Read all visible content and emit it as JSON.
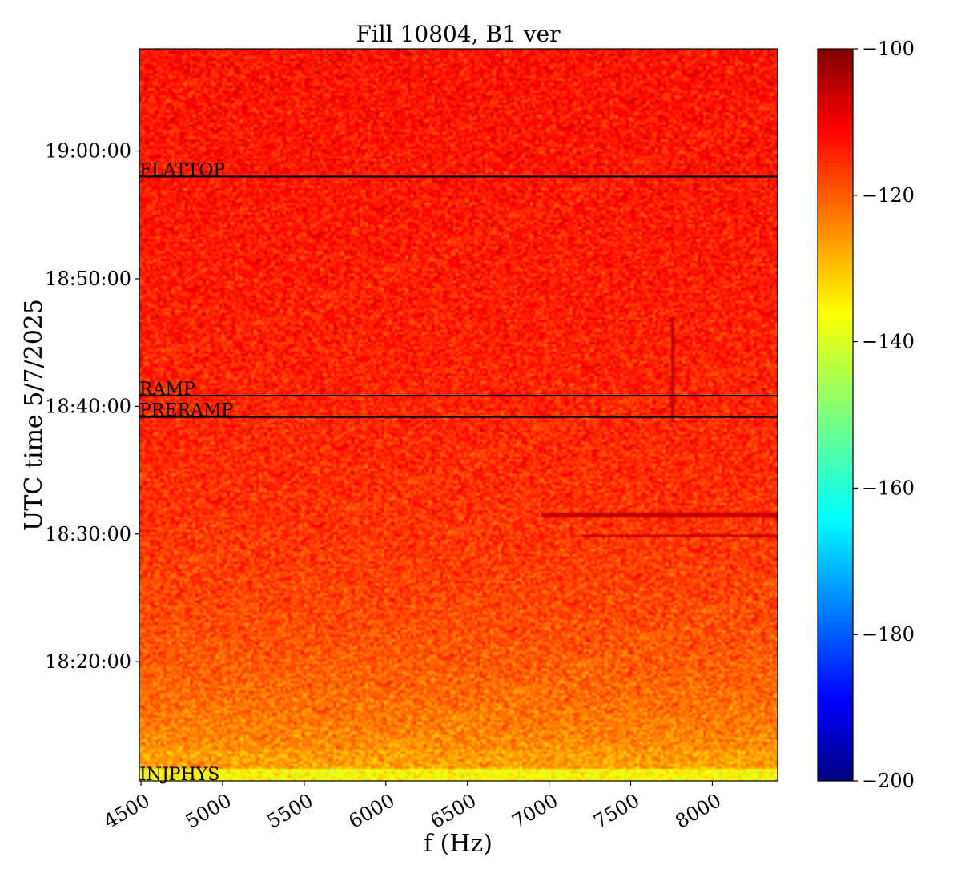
{
  "chart_data": {
    "type": "heatmap",
    "title": "Fill 10804, B1 ver",
    "xlabel": "f (Hz)",
    "ylabel": "UTC time 5/7/2025",
    "xlim": [
      4490,
      8400
    ],
    "x_ticks": [
      4500,
      5000,
      5500,
      6000,
      6500,
      7000,
      7500,
      8000
    ],
    "x_tick_labels": [
      "4500",
      "5000",
      "5500",
      "6000",
      "6500",
      "7000",
      "7500",
      "8000"
    ],
    "ylim": [
      "18:10:40",
      "19:08:00"
    ],
    "y_ticks": [
      "18:20:00",
      "18:30:00",
      "18:40:00",
      "18:50:00",
      "19:00:00"
    ],
    "y_tick_labels": [
      "18:20:00",
      "18:30:00",
      "18:40:00",
      "18:50:00",
      "19:00:00"
    ],
    "colormap": "jet",
    "color_range": [
      -200,
      -100
    ],
    "colorbar_ticks": [
      -100,
      -120,
      -140,
      -160,
      -180,
      -200
    ],
    "colorbar_tick_labels": [
      "−100",
      "−120",
      "−140",
      "−160",
      "−180",
      "−200"
    ],
    "typical_level": "-115 (red-orange), lower near start of fill (about -128)",
    "phase_markers": [
      {
        "label": "FLATTOP",
        "time": "18:58:00"
      },
      {
        "label": "RAMP",
        "time": "18:40:50"
      },
      {
        "label": "PRERAMP",
        "time": "18:39:10"
      },
      {
        "label": "INJPHYS",
        "time": "18:10:40"
      }
    ],
    "spectral_lines": [
      {
        "from_hz": 7760,
        "to_hz": 7760,
        "time_from": "18:38:40",
        "time_to": "18:47:00",
        "level": -105
      },
      {
        "from_hz": 6950,
        "to_hz": 8400,
        "time": "18:31:30",
        "level": -107
      },
      {
        "from_hz": 7200,
        "to_hz": 8400,
        "time": "18:29:50",
        "level": -107
      }
    ]
  }
}
